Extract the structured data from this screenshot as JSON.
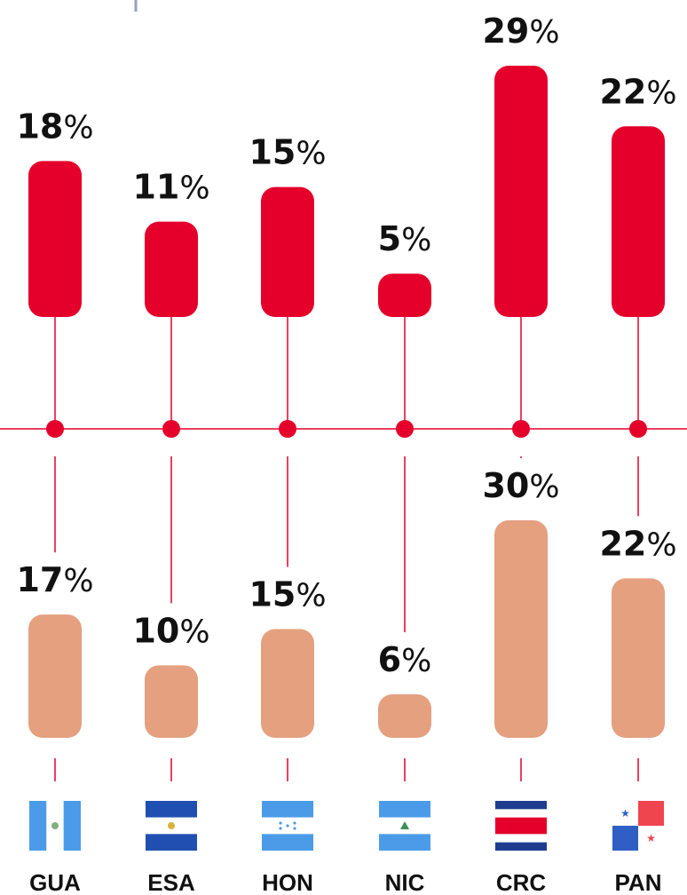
{
  "chart_data": {
    "type": "bar",
    "categories": [
      "GUA",
      "ESA",
      "HON",
      "NIC",
      "CRC",
      "PAN"
    ],
    "series": [
      {
        "values": [
          18,
          11,
          15,
          5,
          29,
          22
        ],
        "color": "#E4002B"
      },
      {
        "values": [
          17,
          10,
          15,
          6,
          30,
          22
        ],
        "color": "#E4A07F"
      }
    ],
    "value_suffix": "%",
    "axis_line_color": "#E4002B",
    "connector_color": "#E4002B",
    "flags": [
      "guatemala-flag",
      "el-salvador-flag",
      "honduras-flag",
      "nicaragua-flag",
      "costa-rica-flag",
      "panama-flag"
    ],
    "legend": "none",
    "grid": false
  }
}
